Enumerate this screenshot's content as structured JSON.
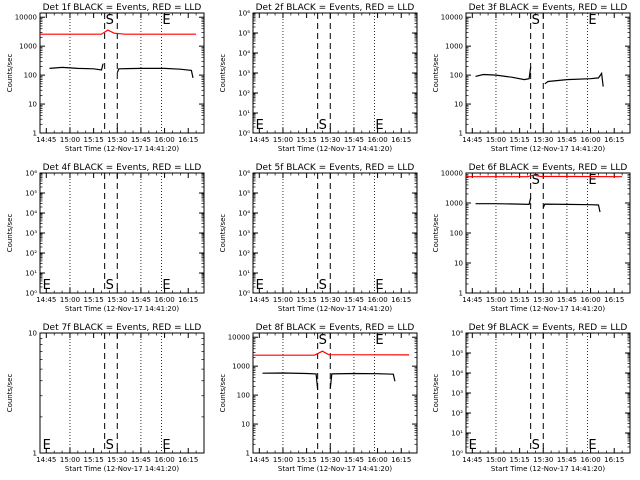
{
  "chart_data": {
    "type": "line",
    "x_tick_labels": [
      "14:45",
      "15:00",
      "15:15",
      "15:30",
      "15:45",
      "16:00",
      "16:15"
    ],
    "x_range": [
      "14:41",
      "16:25"
    ],
    "event_markers": [
      {
        "label": "E",
        "time": "14:42",
        "style": "dotted-none"
      },
      {
        "label": "S",
        "time": "15:22",
        "style": "dashed"
      },
      {
        "label": "",
        "time": "15:30",
        "style": "dashed"
      },
      {
        "label": "E",
        "time": "15:58",
        "style": "dotted"
      }
    ],
    "dotted_grid_times": [
      "15:00",
      "15:45"
    ],
    "colors": {
      "events": "#000000",
      "lld": "#ff0000"
    },
    "panels": [
      {
        "title": "Det 1f BLACK = Events, RED = LLD",
        "ylabel": "Counts/sec",
        "xlabel": "Start Time (12-Nov-17 14:41:20)",
        "yscale": "log",
        "y_tick_labels": [
          "1",
          "10",
          "100",
          "1000",
          "10000"
        ],
        "ylim": [
          1,
          14000
        ],
        "markers_shown": [
          "S",
          "E"
        ],
        "series": [
          {
            "color": "red",
            "segments": [
              [
                [
                  "14:41",
                  2600
                ],
                [
                  "15:20",
                  2600
                ],
                [
                  "15:24",
                  3600
                ],
                [
                  "15:28",
                  2800
                ],
                [
                  "15:35",
                  2600
                ],
                [
                  "16:20",
                  2600
                ]
              ]
            ]
          },
          {
            "color": "black",
            "segments": [
              [
                [
                  "14:47",
                  170
                ],
                [
                  "14:55",
                  185
                ],
                [
                  "15:05",
                  170
                ],
                [
                  "15:15",
                  165
                ],
                [
                  "15:20",
                  150
                ],
                [
                  "15:21",
                  250
                ]
              ],
              [
                [
                  "15:30",
                  120
                ],
                [
                  "15:31",
                  165
                ],
                [
                  "15:45",
                  170
                ],
                [
                  "16:00",
                  170
                ],
                [
                  "16:10",
                  160
                ],
                [
                  "16:17",
                  145
                ],
                [
                  "16:18",
                  80
                ]
              ]
            ]
          }
        ]
      },
      {
        "title": "Det 2f BLACK = Events, RED = LLD",
        "ylabel": "Counts/sec",
        "xlabel": "Start Time (12-Nov-17 14:41:20)",
        "yscale": "log",
        "y_tick_labels": [
          "10⁰",
          "10¹",
          "10²",
          "10³",
          "10⁴",
          "10⁵",
          "10⁶"
        ],
        "ylim": [
          1,
          1000000
        ],
        "markers_shown": [
          "E",
          "S",
          "E"
        ],
        "series": []
      },
      {
        "title": "Det 3f BLACK = Events, RED = LLD",
        "ylabel": "Counts/sec",
        "xlabel": "Start Time (12-Nov-17 14:41:20)",
        "yscale": "log",
        "y_tick_labels": [
          "1",
          "10",
          "100",
          "1000",
          "10000"
        ],
        "ylim": [
          1,
          14000
        ],
        "markers_shown": [
          "S",
          "E"
        ],
        "series": [
          {
            "color": "black",
            "segments": [
              [
                [
                  "14:47",
                  90
                ],
                [
                  "14:52",
                  105
                ],
                [
                  "15:00",
                  100
                ],
                [
                  "15:10",
                  85
                ],
                [
                  "15:18",
                  70
                ],
                [
                  "15:21",
                  75
                ],
                [
                  "15:22",
                  190
                ]
              ],
              [
                [
                  "15:31",
                  50
                ],
                [
                  "15:33",
                  60
                ],
                [
                  "15:45",
                  70
                ],
                [
                  "16:00",
                  75
                ],
                [
                  "16:05",
                  80
                ],
                [
                  "16:07",
                  115
                ],
                [
                  "16:08",
                  40
                ]
              ]
            ]
          }
        ]
      },
      {
        "title": "Det 4f BLACK = Events, RED = LLD",
        "ylabel": "Counts/sec",
        "xlabel": "Start Time (12-Nov-17 14:41:20)",
        "yscale": "log",
        "y_tick_labels": [
          "10⁰",
          "10¹",
          "10²",
          "10³",
          "10⁴",
          "10⁵",
          "10⁶"
        ],
        "ylim": [
          1,
          1000000
        ],
        "markers_shown": [
          "E",
          "S",
          "E"
        ],
        "series": []
      },
      {
        "title": "Det 5f BLACK = Events, RED = LLD",
        "ylabel": "Counts/sec",
        "xlabel": "Start Time (12-Nov-17 14:41:20)",
        "yscale": "log",
        "y_tick_labels": [
          "10⁰",
          "10¹",
          "10²",
          "10³",
          "10⁴",
          "10⁵",
          "10⁶"
        ],
        "ylim": [
          1,
          1000000
        ],
        "markers_shown": [
          "E",
          "S",
          "E"
        ],
        "series": []
      },
      {
        "title": "Det 6f BLACK = Events, RED = LLD",
        "ylabel": "Counts/sec",
        "xlabel": "Start Time (12-Nov-17 14:41:20)",
        "yscale": "log",
        "y_tick_labels": [
          "1",
          "10",
          "100",
          "1000",
          "10000"
        ],
        "ylim": [
          1,
          10000
        ],
        "markers_shown": [
          "S",
          "E"
        ],
        "series": [
          {
            "color": "red",
            "segments": [
              [
                [
                  "14:41",
                  7500
                ],
                [
                  "15:20",
                  7500
                ],
                [
                  "15:24",
                  8500
                ],
                [
                  "15:28",
                  7700
                ],
                [
                  "16:20",
                  7500
                ]
              ]
            ]
          },
          {
            "color": "black",
            "segments": [
              [
                [
                  "14:47",
                  950
                ],
                [
                  "15:00",
                  950
                ],
                [
                  "15:15",
                  920
                ],
                [
                  "15:21",
                  900
                ],
                [
                  "15:22",
                  1500
                ]
              ],
              [
                [
                  "15:30",
                  700
                ],
                [
                  "15:31",
                  920
                ],
                [
                  "15:45",
                  900
                ],
                [
                  "16:00",
                  880
                ],
                [
                  "16:05",
                  860
                ],
                [
                  "16:06",
                  500
                ]
              ]
            ]
          }
        ]
      },
      {
        "title": "Det 7f BLACK = Events, RED = LLD",
        "ylabel": "Counts/sec",
        "xlabel": "Start Time (12-Nov-17 14:41:20)",
        "yscale": "log",
        "y_tick_labels": [
          "1",
          "10"
        ],
        "ylim": [
          1,
          10
        ],
        "markers_shown": [
          "E",
          "S",
          "E"
        ],
        "series": []
      },
      {
        "title": "Det 8f BLACK = Events, RED = LLD",
        "ylabel": "Counts/sec",
        "xlabel": "Start Time (12-Nov-17 14:41:20)",
        "yscale": "log",
        "y_tick_labels": [
          "1",
          "10",
          "100",
          "1000",
          "10000"
        ],
        "ylim": [
          1,
          14000
        ],
        "markers_shown": [
          "S",
          "E"
        ],
        "series": [
          {
            "color": "red",
            "segments": [
              [
                [
                  "14:41",
                  2400
                ],
                [
                  "15:20",
                  2400
                ],
                [
                  "15:25",
                  3300
                ],
                [
                  "15:29",
                  2500
                ],
                [
                  "16:20",
                  2450
                ]
              ]
            ]
          },
          {
            "color": "black",
            "segments": [
              [
                [
                  "14:47",
                  570
                ],
                [
                  "15:00",
                  580
                ],
                [
                  "15:15",
                  560
                ],
                [
                  "15:21",
                  540
                ],
                [
                  "15:22",
                  150
                ]
              ],
              [
                [
                  "15:30",
                  170
                ],
                [
                  "15:31",
                  540
                ],
                [
                  "15:45",
                  560
                ],
                [
                  "16:00",
                  550
                ],
                [
                  "16:10",
                  530
                ],
                [
                  "16:11",
                  300
                ]
              ]
            ]
          }
        ]
      },
      {
        "title": "Det 9f BLACK = Events, RED = LLD",
        "ylabel": "Counts/sec",
        "xlabel": "Start Time (12-Nov-17 14:41:20)",
        "yscale": "log",
        "y_tick_labels": [
          "10⁰",
          "10¹",
          "10²",
          "10³",
          "10⁴",
          "10⁵",
          "10⁶"
        ],
        "ylim": [
          1,
          1000000
        ],
        "markers_shown": [
          "E",
          "S",
          "E"
        ],
        "series": []
      }
    ]
  }
}
